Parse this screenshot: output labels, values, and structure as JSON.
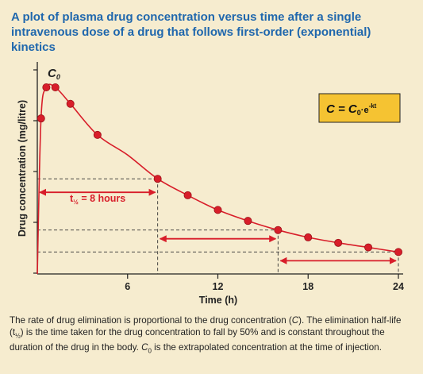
{
  "title": "A plot of plasma drug concentration versus time after a single intravenous dose of a drug that follows first-order (exponential) kinetics",
  "colors": {
    "curve": "#d81e2a",
    "title": "#1f67ad",
    "equation_box": "#f5c332",
    "background": "#f6eccf"
  },
  "chart_data": {
    "type": "line",
    "xlabel": "Time (h)",
    "ylabel": "Drug concentration (mg/litre)",
    "xlim": [
      0,
      24.5
    ],
    "x_ticks": [
      6,
      12,
      18,
      24
    ],
    "y_ticks_count": 5,
    "grid": false,
    "series": [
      {
        "x": [
          0,
          0.25,
          0.6,
          1.2,
          2.2,
          4,
          6,
          8,
          10,
          12,
          14,
          16,
          18,
          20,
          22,
          24
        ],
        "y": [
          0,
          85,
          102,
          102,
          93,
          76,
          65,
          52,
          43,
          35,
          29,
          24,
          20,
          17,
          14.5,
          12
        ],
        "markers": [
          false,
          true,
          true,
          true,
          true,
          true,
          false,
          true,
          true,
          true,
          true,
          true,
          true,
          true,
          true,
          true
        ]
      }
    ],
    "annotations": {
      "c0_label": "C",
      "c0_sub": "0",
      "half_life_label": "t",
      "half_life_sub": "½",
      "half_life_value": " = 8 hours",
      "equation_main": "C = C",
      "equation_sub": "0",
      "equation_tail": "·e",
      "equation_exp": "-kt"
    }
  },
  "caption": {
    "p1": "The rate of drug elimination is proportional to the drug concentration (",
    "c": "C",
    "p2": "). The elimination half-life (t",
    "half_sub": "½",
    "p3": ") is the time taken for the drug concentration to fall by 50% and is constant throughout the duration of the drug in the body. ",
    "c0": "C",
    "c0_sub": "0",
    "p4": " is the extrapolated concentration at the time of injection."
  }
}
